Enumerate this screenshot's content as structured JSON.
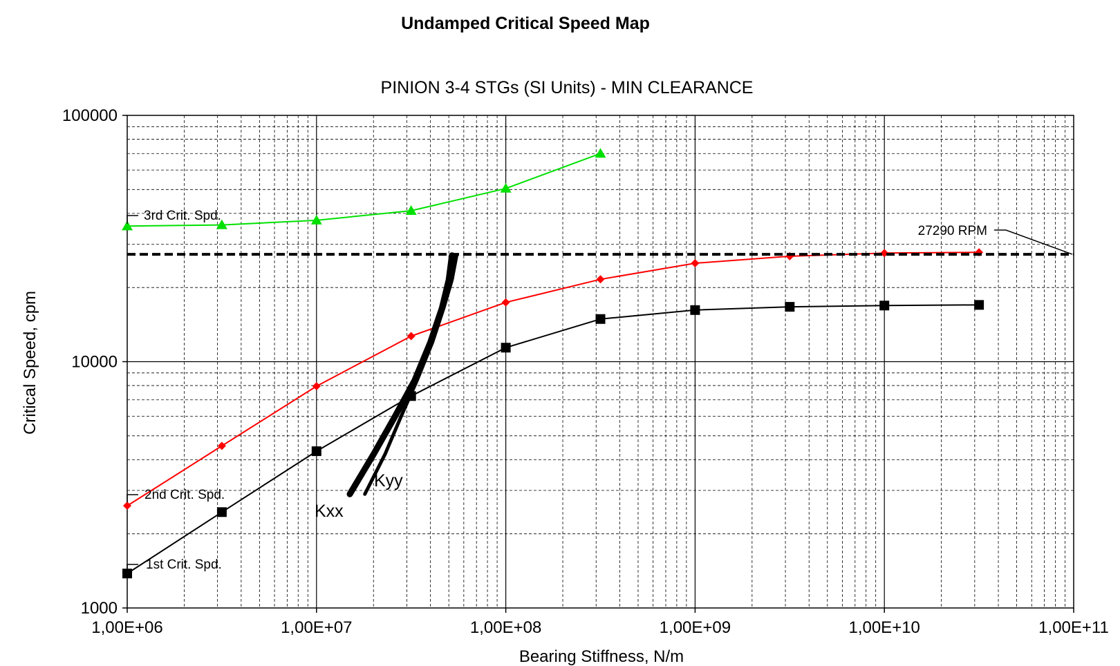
{
  "chart_data": {
    "type": "line",
    "title": "Undamped Critical Speed Map",
    "subtitle": "PINION 3-4 STGs (SI Units) - MIN CLEARANCE",
    "xlabel": "Bearing Stiffness, N/m",
    "ylabel": "Critical Speed, cpm",
    "x_scale": "log",
    "y_scale": "log",
    "xlim": [
      1000000,
      100000000000
    ],
    "ylim": [
      1000,
      100000
    ],
    "x_tick_labels": [
      "1,00E+06",
      "1,00E+07",
      "1,00E+08",
      "1,00E+09",
      "1,00E+10",
      "1,00E+11"
    ],
    "y_tick_labels": [
      "1000",
      "10000",
      "100000"
    ],
    "grid": true,
    "series": [
      {
        "name": "1st Crit. Spd.",
        "color": "#000000",
        "marker": "square",
        "x": [
          1000000,
          3162278,
          10000000,
          31622777,
          100000000,
          316227766,
          1000000000,
          3162277660,
          10000000000,
          31622776602
        ],
        "y": [
          1380,
          2450,
          4330,
          7250,
          11400,
          14900,
          16200,
          16700,
          16900,
          17000
        ]
      },
      {
        "name": "2nd Crit. Spd.",
        "color": "#ff0000",
        "marker": "diamond",
        "x": [
          1000000,
          3162278,
          10000000,
          31622777,
          100000000,
          316227766,
          1000000000,
          3162277660,
          10000000000,
          31622776602
        ],
        "y": [
          2600,
          4550,
          7950,
          12700,
          17400,
          21600,
          25100,
          26800,
          27600,
          27800
        ]
      },
      {
        "name": "3rd Crit. Spd.",
        "color": "#00e000",
        "marker": "triangle",
        "x": [
          1000000,
          3162278,
          10000000,
          31622777,
          100000000,
          316227766
        ],
        "y": [
          35500,
          35900,
          37500,
          41000,
          50500,
          70000
        ]
      },
      {
        "name": "Kxx",
        "color": "#000000",
        "marker": "none",
        "x": [
          15000000,
          20000000,
          26000000,
          33000000,
          40000000,
          46000000,
          50000000,
          52000000
        ],
        "y": [
          2900,
          4200,
          6000,
          8400,
          12000,
          16500,
          21500,
          27000
        ]
      },
      {
        "name": "Kyy",
        "color": "#000000",
        "marker": "none",
        "x": [
          18000000,
          23000000,
          28000000,
          34000000,
          41000000,
          47000000,
          52000000,
          55000000
        ],
        "y": [
          2900,
          4200,
          6000,
          8400,
          12000,
          16500,
          21500,
          27000
        ]
      }
    ],
    "reference_line": {
      "label": "27290 RPM",
      "y": 27290
    },
    "annotations": {
      "first": "1st Crit. Spd.",
      "second": "2nd Crit. Spd.",
      "third": "3rd Crit. Spd.",
      "kxx": "Kxx",
      "kyy": "Kyy"
    },
    "colors": {
      "grid": "#000000",
      "first": "#000000",
      "second": "#ff0000",
      "third": "#00e000"
    }
  }
}
